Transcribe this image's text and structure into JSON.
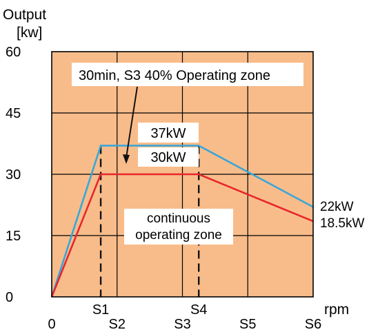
{
  "chart_data": {
    "type": "line",
    "ylabel": "Output",
    "yunit": "[kw]",
    "xlabel": "rpm",
    "ylim": [
      0,
      60
    ],
    "yticks": [
      "0",
      "15",
      "30",
      "45",
      "60"
    ],
    "xticks_top": [
      {
        "label": "S1",
        "x": 1.5
      },
      {
        "label": "S4",
        "x": 4.5
      }
    ],
    "xticks_bottom": [
      {
        "label": "0",
        "x": 0
      },
      {
        "label": "S2",
        "x": 2
      },
      {
        "label": "S3",
        "x": 4
      },
      {
        "label": "S5",
        "x": 6
      },
      {
        "label": "S6",
        "x": 8
      }
    ],
    "grid": true,
    "background": "#F8BC8A",
    "series": [
      {
        "color": "#3AA6D8",
        "points": [
          [
            0,
            0
          ],
          [
            1.5,
            37
          ],
          [
            4.5,
            37
          ],
          [
            8,
            22
          ]
        ],
        "end_label": "22kW",
        "level_label": "37kW"
      },
      {
        "color": "#E8262B",
        "points": [
          [
            0,
            0
          ],
          [
            1.5,
            30
          ],
          [
            4.5,
            30
          ],
          [
            8,
            18.5
          ]
        ],
        "end_label": "18.5kW",
        "level_label": "30kW"
      }
    ],
    "annotations": [
      {
        "text": "30min, S3 40% Operating zone"
      },
      {
        "text_lines": [
          "continuous",
          "operating zone"
        ]
      }
    ]
  }
}
